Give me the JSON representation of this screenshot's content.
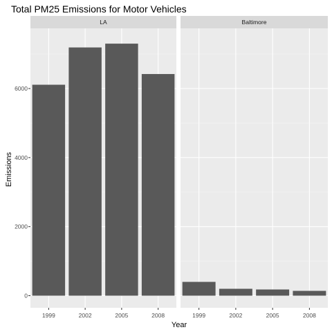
{
  "chart_data": {
    "type": "bar",
    "title": "Total PM25 Emissions for Motor Vehicles",
    "xlabel": "Year",
    "ylabel": "Emissions",
    "ylim": [
      0,
      7700
    ],
    "yticks": [
      0,
      2000,
      4000,
      6000
    ],
    "categories": [
      "1999",
      "2002",
      "2005",
      "2008"
    ],
    "grid": true,
    "facets": [
      {
        "name": "LA",
        "values": [
          6110,
          7190,
          7300,
          6420
        ]
      },
      {
        "name": "Baltimore",
        "values": [
          400,
          200,
          180,
          140
        ]
      }
    ],
    "colors": {
      "bar": "#595959",
      "panel_bg": "#ebebeb",
      "strip_bg": "#d9d9d9",
      "grid_major": "#ffffff",
      "grid_minor": "#f5f5f5",
      "tick": "#333333"
    }
  }
}
